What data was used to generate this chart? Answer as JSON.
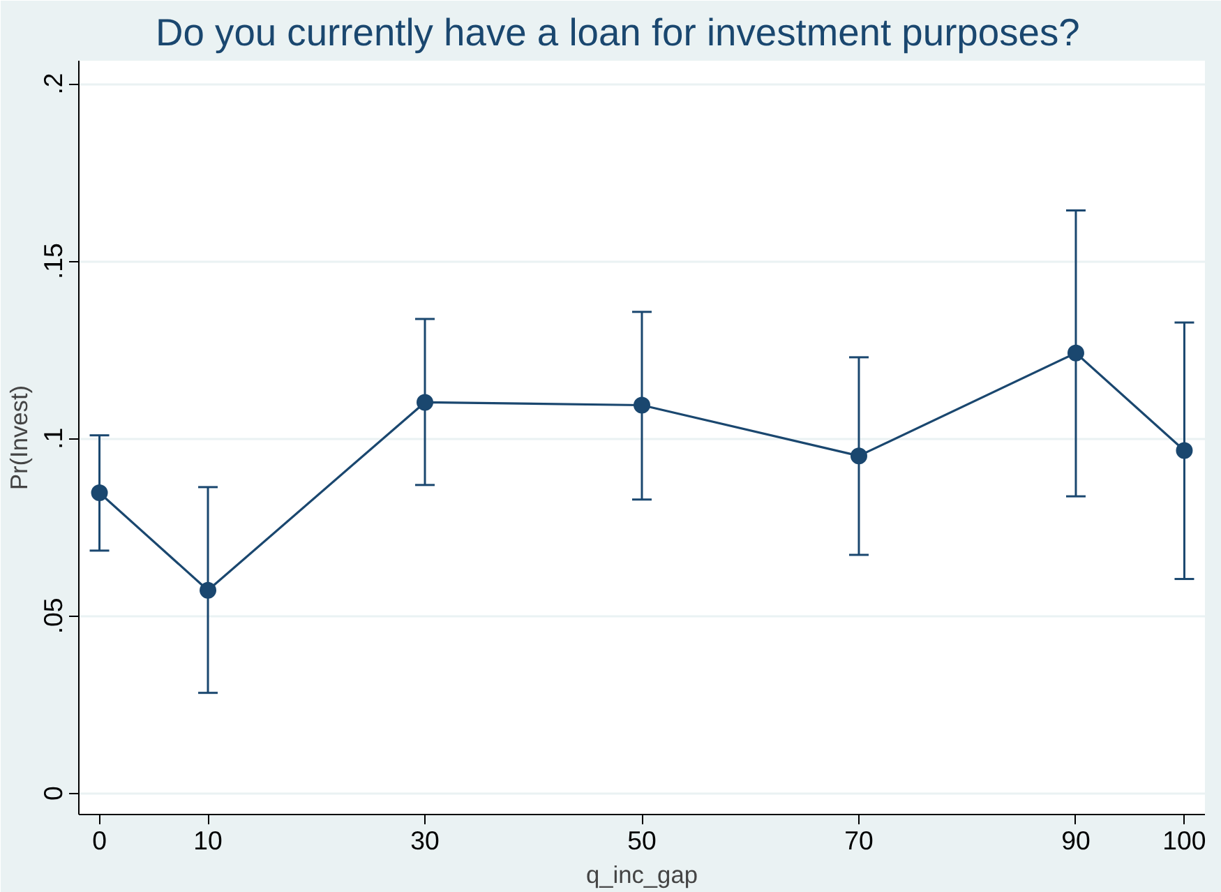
{
  "chart_data": {
    "type": "line",
    "title": "Do you currently have a loan for investment purposes?",
    "xlabel": "q_inc_gap",
    "ylabel": "Pr(Invest)",
    "x": [
      0,
      10,
      30,
      50,
      70,
      90,
      100
    ],
    "series": [
      {
        "color": "#1a476f",
        "values": [
          0.0847,
          0.0572,
          0.1102,
          0.1094,
          0.0951,
          0.1241,
          0.0966
        ],
        "errors": [
          [
            0.0684,
            0.1009
          ],
          [
            0.0283,
            0.0863
          ],
          [
            0.0869,
            0.1337
          ],
          [
            0.0828,
            0.1357
          ],
          [
            0.0672,
            0.1229
          ],
          [
            0.0837,
            0.1643
          ],
          [
            0.0604,
            0.1327
          ]
        ]
      }
    ],
    "xlim": [
      -1.9,
      101.9
    ],
    "xticks": [
      0,
      10,
      30,
      50,
      70,
      90,
      100
    ],
    "ylim": [
      -0.006,
      0.2065
    ],
    "yticks": [
      {
        "value": 0,
        "label": "0"
      },
      {
        "value": 0.05,
        "label": ".05"
      },
      {
        "value": 0.1,
        "label": ".1"
      },
      {
        "value": 0.15,
        "label": ".15"
      },
      {
        "value": 0.2,
        "label": ".2"
      }
    ],
    "grid": "y",
    "marker": "circle",
    "line_style": "solid"
  }
}
